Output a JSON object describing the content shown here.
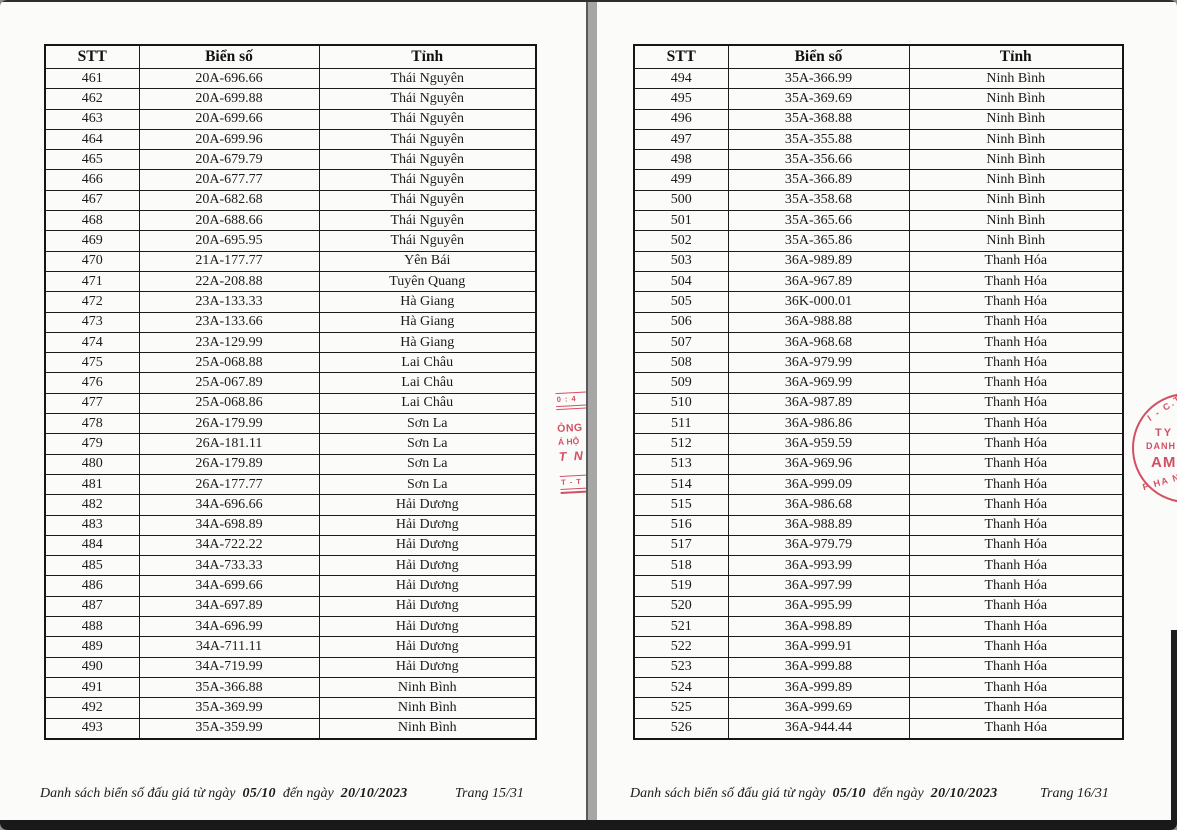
{
  "pages": [
    {
      "page_name": "page-15",
      "columns": [
        "STT",
        "Biển số",
        "Tỉnh"
      ],
      "rows": [
        [
          "461",
          "20A-696.66",
          "Thái Nguyên"
        ],
        [
          "462",
          "20A-699.88",
          "Thái Nguyên"
        ],
        [
          "463",
          "20A-699.66",
          "Thái Nguyên"
        ],
        [
          "464",
          "20A-699.96",
          "Thái Nguyên"
        ],
        [
          "465",
          "20A-679.79",
          "Thái Nguyên"
        ],
        [
          "466",
          "20A-677.77",
          "Thái Nguyên"
        ],
        [
          "467",
          "20A-682.68",
          "Thái Nguyên"
        ],
        [
          "468",
          "20A-688.66",
          "Thái Nguyên"
        ],
        [
          "469",
          "20A-695.95",
          "Thái Nguyên"
        ],
        [
          "470",
          "21A-177.77",
          "Yên Bái"
        ],
        [
          "471",
          "22A-208.88",
          "Tuyên Quang"
        ],
        [
          "472",
          "23A-133.33",
          "Hà Giang"
        ],
        [
          "473",
          "23A-133.66",
          "Hà Giang"
        ],
        [
          "474",
          "23A-129.99",
          "Hà Giang"
        ],
        [
          "475",
          "25A-068.88",
          "Lai Châu"
        ],
        [
          "476",
          "25A-067.89",
          "Lai Châu"
        ],
        [
          "477",
          "25A-068.86",
          "Lai Châu"
        ],
        [
          "478",
          "26A-179.99",
          "Sơn La"
        ],
        [
          "479",
          "26A-181.11",
          "Sơn La"
        ],
        [
          "480",
          "26A-179.89",
          "Sơn La"
        ],
        [
          "481",
          "26A-177.77",
          "Sơn La"
        ],
        [
          "482",
          "34A-696.66",
          "Hải Dương"
        ],
        [
          "483",
          "34A-698.89",
          "Hải Dương"
        ],
        [
          "484",
          "34A-722.22",
          "Hải Dương"
        ],
        [
          "485",
          "34A-733.33",
          "Hải Dương"
        ],
        [
          "486",
          "34A-699.66",
          "Hải Dương"
        ],
        [
          "487",
          "34A-697.89",
          "Hải Dương"
        ],
        [
          "488",
          "34A-696.99",
          "Hải Dương"
        ],
        [
          "489",
          "34A-711.11",
          "Hải Dương"
        ],
        [
          "490",
          "34A-719.99",
          "Hải Dương"
        ],
        [
          "491",
          "35A-366.88",
          "Ninh Bình"
        ],
        [
          "492",
          "35A-369.99",
          "Ninh Bình"
        ],
        [
          "493",
          "35A-359.99",
          "Ninh Bình"
        ]
      ],
      "footer": {
        "text_before": "Danh sách biển số đấu giá từ ngày",
        "date_from": "05/10",
        "text_middle": "đến ngày",
        "date_to": "20/10/2023",
        "page_label": "Trang 15/31"
      }
    },
    {
      "page_name": "page-16",
      "columns": [
        "STT",
        "Biển số",
        "Tỉnh"
      ],
      "rows": [
        [
          "494",
          "35A-366.99",
          "Ninh Bình"
        ],
        [
          "495",
          "35A-369.69",
          "Ninh Bình"
        ],
        [
          "496",
          "35A-368.88",
          "Ninh Bình"
        ],
        [
          "497",
          "35A-355.88",
          "Ninh Bình"
        ],
        [
          "498",
          "35A-356.66",
          "Ninh Bình"
        ],
        [
          "499",
          "35A-366.89",
          "Ninh Bình"
        ],
        [
          "500",
          "35A-358.68",
          "Ninh Bình"
        ],
        [
          "501",
          "35A-365.66",
          "Ninh Bình"
        ],
        [
          "502",
          "35A-365.86",
          "Ninh Bình"
        ],
        [
          "503",
          "36A-989.89",
          "Thanh Hóa"
        ],
        [
          "504",
          "36A-967.89",
          "Thanh Hóa"
        ],
        [
          "505",
          "36K-000.01",
          "Thanh Hóa"
        ],
        [
          "506",
          "36A-988.88",
          "Thanh Hóa"
        ],
        [
          "507",
          "36A-968.68",
          "Thanh Hóa"
        ],
        [
          "508",
          "36A-979.99",
          "Thanh Hóa"
        ],
        [
          "509",
          "36A-969.99",
          "Thanh Hóa"
        ],
        [
          "510",
          "36A-987.89",
          "Thanh Hóa"
        ],
        [
          "511",
          "36A-986.86",
          "Thanh Hóa"
        ],
        [
          "512",
          "36A-959.59",
          "Thanh Hóa"
        ],
        [
          "513",
          "36A-969.96",
          "Thanh Hóa"
        ],
        [
          "514",
          "36A-999.09",
          "Thanh Hóa"
        ],
        [
          "515",
          "36A-986.68",
          "Thanh Hóa"
        ],
        [
          "516",
          "36A-988.89",
          "Thanh Hóa"
        ],
        [
          "517",
          "36A-979.79",
          "Thanh Hóa"
        ],
        [
          "518",
          "36A-993.99",
          "Thanh Hóa"
        ],
        [
          "519",
          "36A-997.99",
          "Thanh Hóa"
        ],
        [
          "520",
          "36A-995.99",
          "Thanh Hóa"
        ],
        [
          "521",
          "36A-998.89",
          "Thanh Hóa"
        ],
        [
          "522",
          "36A-999.91",
          "Thanh Hóa"
        ],
        [
          "523",
          "36A-999.88",
          "Thanh Hóa"
        ],
        [
          "524",
          "36A-999.89",
          "Thanh Hóa"
        ],
        [
          "525",
          "36A-999.69",
          "Thanh Hóa"
        ],
        [
          "526",
          "36A-944.44",
          "Thanh Hóa"
        ]
      ],
      "footer": {
        "text_before": "Danh sách biển số đấu giá từ ngày",
        "date_from": "05/10",
        "text_middle": "đến ngày",
        "date_to": "20/10/2023",
        "page_label": "Trang 16/31"
      }
    }
  ],
  "stamps": {
    "color": "#cf4257",
    "left_fragments": {
      "box_top": "0 : 4",
      "line1": "ÒNG",
      "line2": "Á HỘ",
      "line3": "T N",
      "box_bottom": "T - T"
    },
    "right_fragments": {
      "arc_top": "I - C.T",
      "line1": "TY",
      "line2": "DANH",
      "line3": "AM",
      "arc_bottom": "P HA N"
    }
  }
}
